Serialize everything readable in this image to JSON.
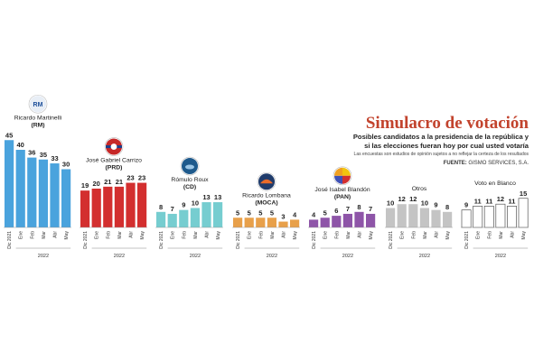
{
  "header": {
    "title": "Simulacro de votación",
    "subtitle": "Posibles candidatos a la  presidencia de la república y si las elecciones fueran hoy por cual usted votaría",
    "note": "Las encuestas son estudios de opinión sujetos a no reflejar la certeza de los resultados",
    "source_label": "FUENTE:",
    "source": "GISMO SERVICES, S.A."
  },
  "chart_data": {
    "type": "bar",
    "categories": [
      "Dic 2021",
      "Ene",
      "Feb",
      "Mar",
      "Abr",
      "May"
    ],
    "year_label": "2022",
    "series": [
      {
        "name": "Ricardo Martinelli",
        "party": "(RM)",
        "color": "#4aa3dd",
        "values": [
          45,
          40,
          36,
          35,
          33,
          30
        ],
        "logo": "RM"
      },
      {
        "name": "José Gabriel Carrizo",
        "party": "(PRD)",
        "color": "#d32f2f",
        "values": [
          19,
          20,
          21,
          21,
          23,
          23
        ],
        "logo": "prd-logo-icon"
      },
      {
        "name": "Rómulo Roux",
        "party": "(CD)",
        "color": "#76cdd0",
        "values": [
          8,
          7,
          9,
          10,
          13,
          13
        ],
        "logo": "cd-logo-icon"
      },
      {
        "name": "Ricardo Lombana",
        "party": "(MOCA)",
        "color": "#e8a04a",
        "values": [
          5,
          5,
          5,
          5,
          3,
          4
        ],
        "logo": "moca-logo-icon"
      },
      {
        "name": "José Isabel Blandón",
        "party": "(PAN)",
        "color": "#8e55a8",
        "values": [
          4,
          5,
          6,
          7,
          8,
          7
        ],
        "logo": "pan-logo-icon"
      },
      {
        "name": "Otros",
        "party": "",
        "color": "#c4c4c4",
        "values": [
          10,
          12,
          12,
          10,
          9,
          8
        ]
      },
      {
        "name": "Voto en Blanco",
        "party": "",
        "color": "#ffffff",
        "values": [
          9,
          11,
          11,
          12,
          11,
          15
        ]
      }
    ]
  }
}
